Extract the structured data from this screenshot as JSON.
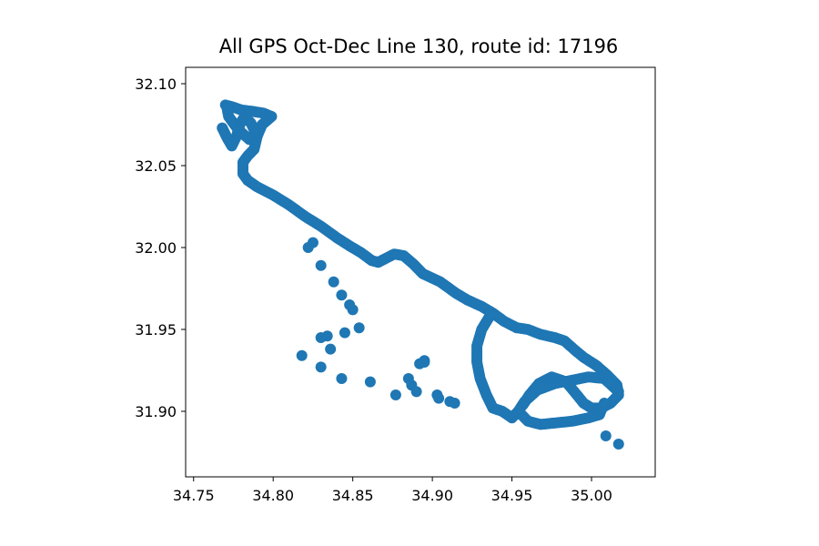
{
  "chart_data": {
    "type": "scatter",
    "title": "All GPS Oct-Dec Line 130, route id: 17196",
    "xlabel": "",
    "ylabel": "",
    "xlim": [
      34.745,
      35.04
    ],
    "ylim": [
      31.86,
      32.11
    ],
    "xticks": [
      34.75,
      34.8,
      34.85,
      34.9,
      34.95,
      35.0
    ],
    "xtick_labels": [
      "34.75",
      "34.80",
      "34.85",
      "34.90",
      "34.95",
      "35.00"
    ],
    "yticks": [
      31.9,
      31.95,
      32.0,
      32.05,
      32.1
    ],
    "ytick_labels": [
      "31.90",
      "31.95",
      "32.00",
      "32.05",
      "32.10"
    ],
    "grid": false,
    "marker_color": "#1f77b4",
    "route_polylines": [
      [
        [
          34.77,
          32.087
        ],
        [
          34.774,
          32.086
        ],
        [
          34.78,
          32.084
        ],
        [
          34.788,
          32.083
        ],
        [
          34.794,
          32.082
        ],
        [
          34.799,
          32.08
        ],
        [
          34.793,
          32.075
        ],
        [
          34.79,
          32.068
        ],
        [
          34.788,
          32.06
        ],
        [
          34.784,
          32.056
        ],
        [
          34.781,
          32.052
        ],
        [
          34.781,
          32.045
        ],
        [
          34.784,
          32.041
        ],
        [
          34.79,
          32.037
        ],
        [
          34.8,
          32.032
        ],
        [
          34.81,
          32.026
        ],
        [
          34.82,
          32.019
        ],
        [
          34.83,
          32.013
        ],
        [
          34.84,
          32.006
        ],
        [
          34.848,
          32.001
        ],
        [
          34.855,
          31.997
        ],
        [
          34.862,
          31.992
        ],
        [
          34.866,
          31.991
        ],
        [
          34.87,
          31.993
        ],
        [
          34.876,
          31.996
        ],
        [
          34.882,
          31.995
        ],
        [
          34.888,
          31.99
        ],
        [
          34.894,
          31.984
        ],
        [
          34.905,
          31.979
        ],
        [
          34.915,
          31.972
        ],
        [
          34.922,
          31.968
        ],
        [
          34.931,
          31.964
        ],
        [
          34.938,
          31.96
        ],
        [
          34.945,
          31.955
        ],
        [
          34.953,
          31.951
        ],
        [
          34.96,
          31.95
        ],
        [
          34.968,
          31.947
        ],
        [
          34.977,
          31.945
        ],
        [
          34.983,
          31.943
        ],
        [
          34.99,
          31.937
        ],
        [
          34.995,
          31.933
        ],
        [
          35.003,
          31.928
        ],
        [
          35.01,
          31.922
        ],
        [
          35.016,
          31.916
        ],
        [
          35.017,
          31.91
        ],
        [
          35.012,
          31.905
        ],
        [
          35.006,
          31.902
        ],
        [
          35.0,
          31.902
        ],
        [
          34.995,
          31.905
        ],
        [
          34.99,
          31.911
        ],
        [
          34.984,
          31.918
        ],
        [
          34.975,
          31.921
        ],
        [
          34.967,
          31.917
        ],
        [
          34.961,
          31.91
        ],
        [
          34.957,
          31.904
        ]
      ],
      [
        [
          35.017,
          31.912
        ],
        [
          35.008,
          31.92
        ],
        [
          34.998,
          31.921
        ],
        [
          34.988,
          31.919
        ],
        [
          34.977,
          31.917
        ],
        [
          34.966,
          31.913
        ],
        [
          34.958,
          31.906
        ],
        [
          34.954,
          31.9
        ],
        [
          34.95,
          31.896
        ],
        [
          34.944,
          31.9
        ],
        [
          34.938,
          31.902
        ],
        [
          34.934,
          31.91
        ],
        [
          34.93,
          31.92
        ],
        [
          34.928,
          31.93
        ],
        [
          34.928,
          31.94
        ],
        [
          34.931,
          31.95
        ],
        [
          34.936,
          31.958
        ]
      ],
      [
        [
          34.954,
          31.9
        ],
        [
          34.96,
          31.894
        ],
        [
          34.968,
          31.892
        ],
        [
          34.978,
          31.893
        ],
        [
          34.988,
          31.894
        ],
        [
          34.998,
          31.896
        ],
        [
          35.005,
          31.898
        ],
        [
          35.008,
          31.905
        ]
      ],
      [
        [
          34.768,
          32.073
        ],
        [
          34.771,
          32.067
        ],
        [
          34.774,
          32.062
        ],
        [
          34.777,
          32.068
        ],
        [
          34.779,
          32.075
        ],
        [
          34.782,
          32.08
        ],
        [
          34.786,
          32.076
        ],
        [
          34.789,
          32.07
        ],
        [
          34.785,
          32.066
        ],
        [
          34.778,
          32.072
        ],
        [
          34.772,
          32.08
        ],
        [
          34.771,
          32.085
        ]
      ]
    ],
    "outlier_points": [
      [
        34.822,
        32.0
      ],
      [
        34.825,
        32.003
      ],
      [
        34.83,
        31.989
      ],
      [
        34.838,
        31.979
      ],
      [
        34.843,
        31.971
      ],
      [
        34.848,
        31.965
      ],
      [
        34.85,
        31.962
      ],
      [
        34.854,
        31.951
      ],
      [
        34.845,
        31.948
      ],
      [
        34.83,
        31.945
      ],
      [
        34.834,
        31.946
      ],
      [
        34.836,
        31.938
      ],
      [
        34.818,
        31.934
      ],
      [
        34.83,
        31.927
      ],
      [
        34.843,
        31.92
      ],
      [
        34.861,
        31.918
      ],
      [
        34.877,
        31.91
      ],
      [
        34.885,
        31.92
      ],
      [
        34.887,
        31.916
      ],
      [
        34.89,
        31.912
      ],
      [
        34.892,
        31.929
      ],
      [
        34.895,
        31.931
      ],
      [
        34.895,
        31.93
      ],
      [
        34.903,
        31.91
      ],
      [
        34.904,
        31.908
      ],
      [
        34.911,
        31.906
      ],
      [
        34.914,
        31.905
      ],
      [
        35.009,
        31.885
      ],
      [
        35.017,
        31.88
      ]
    ]
  }
}
